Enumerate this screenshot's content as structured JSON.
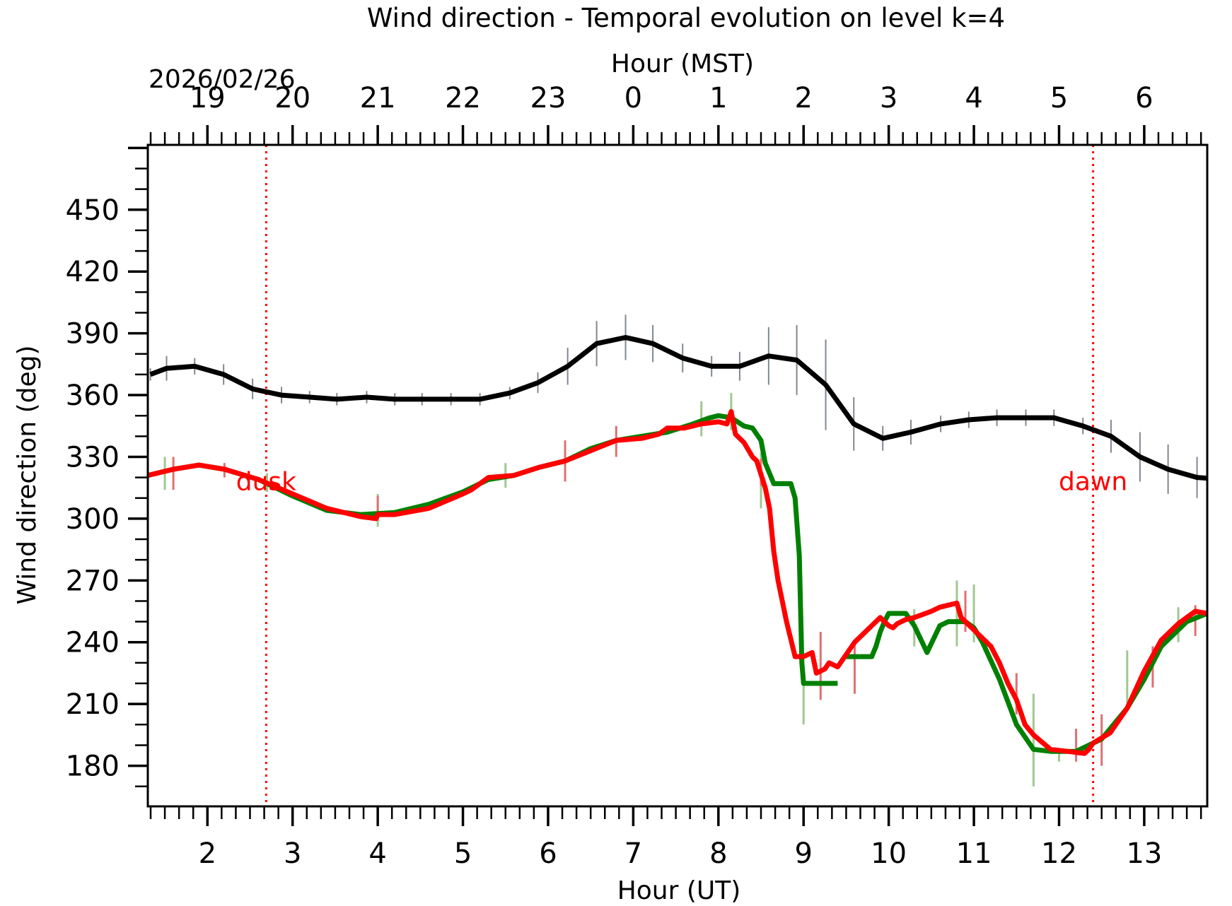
{
  "chart_data": {
    "type": "line",
    "title": "Wind direction - Temporal evolution on level k=4",
    "top_axis_label": "Hour (MST)",
    "date_label": "2026/02/26",
    "xlabel": "Hour (UT)",
    "ylabel": "Wind direction (deg)",
    "xlim": [
      1.3,
      13.74
    ],
    "ylim": [
      160.3,
      481.5
    ],
    "x_ticks": [
      2,
      3,
      4,
      5,
      6,
      7,
      8,
      9,
      10,
      11,
      12,
      13
    ],
    "x_tick_labels": [
      "2",
      "3",
      "4",
      "5",
      "6",
      "7",
      "8",
      "9",
      "10",
      "11",
      "12",
      "13"
    ],
    "top_ticks_ut": [
      2,
      3,
      4,
      5,
      6,
      7,
      8,
      9,
      10,
      11,
      12,
      13
    ],
    "top_tick_labels": [
      "19",
      "20",
      "21",
      "22",
      "23",
      "0",
      "1",
      "2",
      "3",
      "4",
      "5",
      "6"
    ],
    "y_ticks": [
      180,
      210,
      240,
      270,
      300,
      330,
      360,
      390,
      420,
      450
    ],
    "y_tick_labels": [
      "180",
      "210",
      "240",
      "270",
      "300",
      "330",
      "360",
      "390",
      "420",
      "450"
    ],
    "grid": false,
    "annotations": [
      {
        "text": "dusk",
        "x": 2.69,
        "y": 318,
        "color": "#ff0000",
        "vline": true
      },
      {
        "text": "dawn",
        "x": 12.4,
        "y": 318,
        "color": "#ff0000",
        "vline": true
      }
    ],
    "series": [
      {
        "name": "black",
        "color": "#000000",
        "errorbar_color": "#808890",
        "x": [
          1.33,
          1.52,
          1.85,
          2.19,
          2.53,
          2.87,
          3.2,
          3.52,
          3.87,
          4.2,
          4.52,
          4.86,
          5.2,
          5.55,
          5.88,
          6.23,
          6.57,
          6.91,
          7.23,
          7.58,
          7.92,
          8.25,
          8.59,
          8.92,
          9.26,
          9.59,
          9.93,
          10.26,
          10.61,
          10.94,
          11.27,
          11.61,
          11.94,
          12.28,
          12.61,
          12.95,
          13.28,
          13.62,
          13.96
        ],
        "y": [
          370,
          373,
          374,
          370,
          363,
          360,
          359,
          358,
          359,
          358,
          358,
          358,
          358,
          361,
          366,
          374,
          385,
          388,
          385,
          378,
          374,
          374,
          379,
          377,
          365,
          346,
          339,
          342,
          346,
          348,
          349,
          349,
          349,
          345,
          340,
          330,
          324,
          320,
          319
        ],
        "err": [
          3,
          6,
          4,
          5,
          5,
          4,
          3,
          3,
          3,
          3,
          3,
          3,
          3,
          3,
          5,
          9,
          11,
          11,
          9,
          7,
          5,
          7,
          14,
          17,
          22,
          13,
          6,
          6,
          4,
          4,
          4,
          4,
          4,
          4,
          8,
          12,
          12,
          10,
          9
        ]
      },
      {
        "name": "green",
        "color": "#008000",
        "errorbar_color": "#a0c890",
        "x": [
          1.3,
          1.6,
          1.9,
          2.2,
          2.6,
          3.0,
          3.4,
          3.8,
          4.2,
          4.6,
          5.0,
          5.3,
          5.6,
          5.9,
          6.2,
          6.5,
          6.8,
          7.1,
          7.4,
          7.7,
          7.9,
          8.0,
          8.15,
          8.3,
          8.4,
          8.5,
          8.55,
          8.6,
          8.65,
          8.75,
          8.85,
          8.9,
          8.95,
          8.98,
          9.0,
          9.05,
          9.4
        ],
        "y": [
          321,
          324,
          326,
          324,
          319,
          311,
          304,
          302,
          303,
          307,
          313,
          319,
          321,
          325,
          328,
          334,
          338,
          340,
          342,
          346,
          349,
          350,
          349,
          345,
          344,
          338,
          327,
          322,
          317,
          317,
          317,
          310,
          282,
          230,
          220,
          220,
          220
        ],
        "x2": [
          9.5,
          9.8,
          9.85,
          9.9,
          9.95,
          10.0,
          10.2,
          10.3,
          10.45,
          10.6,
          10.7,
          10.9,
          11.0,
          11.1,
          11.3,
          11.5,
          11.7,
          11.9,
          12.0,
          12.2,
          12.5,
          12.8,
          13.0,
          13.2,
          13.5,
          13.74
        ],
        "y2": [
          233,
          233,
          238,
          245,
          250,
          254,
          254,
          248,
          235,
          248,
          250,
          250,
          247,
          240,
          222,
          200,
          188,
          187,
          187,
          187,
          193,
          208,
          222,
          238,
          250,
          254
        ],
        "err_points": [
          [
            1.5,
            330,
            314
          ],
          [
            2.7,
            322,
            313
          ],
          [
            4.0,
            312,
            296
          ],
          [
            5.5,
            327,
            315
          ],
          [
            7.8,
            357,
            340
          ],
          [
            8.15,
            361,
            343
          ],
          [
            8.5,
            332,
            305
          ],
          [
            9.0,
            228,
            200
          ],
          [
            10.3,
            256,
            238
          ],
          [
            10.8,
            270,
            238
          ],
          [
            11.0,
            268,
            240
          ],
          [
            11.7,
            215,
            170
          ],
          [
            12.0,
            188,
            182
          ],
          [
            12.8,
            236,
            210
          ],
          [
            13.4,
            257,
            240
          ]
        ]
      },
      {
        "name": "red",
        "color": "#ff0000",
        "errorbar_color": "#e07070",
        "x": [
          1.3,
          1.6,
          1.9,
          2.2,
          2.6,
          3.0,
          3.4,
          3.8,
          3.98,
          4.0,
          4.2,
          4.6,
          5.0,
          5.1,
          5.3,
          5.6,
          5.9,
          6.2,
          6.5,
          6.8,
          7.1,
          7.3,
          7.4,
          7.6,
          7.8,
          8.0,
          8.1,
          8.15,
          8.2,
          8.3,
          8.4,
          8.45,
          8.55,
          8.6,
          8.65,
          8.7,
          8.8,
          8.9,
          9.0,
          9.1,
          9.15,
          9.25,
          9.3,
          9.4,
          9.45,
          9.5,
          9.6,
          9.8,
          9.9,
          10.0,
          10.05,
          10.1,
          10.2,
          10.3,
          10.5,
          10.6,
          10.7,
          10.8,
          10.85,
          11.0,
          11.2,
          11.3,
          11.4,
          11.5,
          11.6,
          11.7,
          11.9,
          12.1,
          12.3,
          12.35,
          12.4,
          12.6,
          12.8,
          13.0,
          13.2,
          13.4,
          13.6,
          13.74
        ],
        "y": [
          321,
          324,
          326,
          324,
          319,
          312,
          305,
          301,
          300,
          302,
          302,
          305,
          312,
          314,
          320,
          321,
          325,
          328,
          333,
          338,
          339,
          341,
          344,
          344,
          346,
          347,
          346,
          352,
          341,
          337,
          330,
          328,
          315,
          305,
          284,
          270,
          250,
          233,
          233,
          235,
          225,
          227,
          230,
          228,
          231,
          234,
          240,
          248,
          252,
          248,
          247,
          249,
          251,
          252,
          255,
          257,
          258,
          259,
          252,
          246,
          238,
          230,
          220,
          212,
          200,
          195,
          188,
          187,
          186,
          188,
          191,
          196,
          208,
          226,
          241,
          249,
          255,
          254
        ],
        "err_points": [
          [
            1.6,
            330,
            314
          ],
          [
            2.2,
            327,
            320
          ],
          [
            4.0,
            311,
            299
          ],
          [
            6.2,
            338,
            318
          ],
          [
            6.8,
            345,
            330
          ],
          [
            8.5,
            329,
            316
          ],
          [
            9.2,
            245,
            212
          ],
          [
            9.6,
            240,
            215
          ],
          [
            10.9,
            265,
            245
          ],
          [
            11.5,
            225,
            205
          ],
          [
            12.2,
            198,
            182
          ],
          [
            12.5,
            205,
            180
          ],
          [
            13.1,
            238,
            218
          ],
          [
            13.6,
            258,
            243
          ]
        ]
      }
    ]
  }
}
